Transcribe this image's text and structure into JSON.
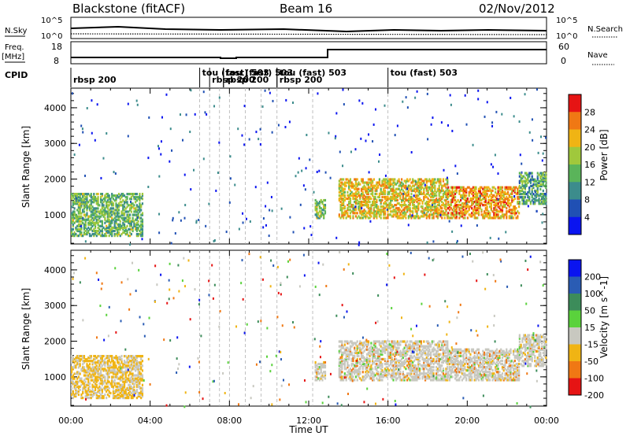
{
  "header": {
    "title": "Blackstone (fitACF)",
    "beam": "Beam 16",
    "date": "02/Nov/2012"
  },
  "sky_panel": {
    "left_label": "N.Sky",
    "right_label": "N.Search",
    "left_ticks": [
      "10^5",
      "10^0"
    ],
    "right_ticks": [
      "10^5",
      "10^0"
    ]
  },
  "freq_panel": {
    "left_label_1": "Freq.",
    "left_label_2": "[MHz]",
    "left_ticks": [
      "18",
      "8"
    ],
    "right_label": "Nave",
    "right_ticks": [
      "60",
      "0"
    ]
  },
  "cpid": {
    "label": "CPID",
    "segments": [
      {
        "label": "rbsp 200",
        "row": 1,
        "start_hour": 0.0
      },
      {
        "label": "tou (fast) 503",
        "row": 0,
        "start_hour": 6.5
      },
      {
        "label": "rbsp 200",
        "row": 1,
        "start_hour": 7.0
      },
      {
        "label": "rbsp 200",
        "row": 1,
        "start_hour": 7.7
      },
      {
        "label": "tou (fast) 503",
        "row": 0,
        "start_hour": 7.7
      },
      {
        "label": "rbsp 200",
        "row": 1,
        "start_hour": 10.4
      },
      {
        "label": "tou (fast) 503",
        "row": 0,
        "start_hour": 10.4
      },
      {
        "label": "tou (fast) 503",
        "row": 0,
        "start_hour": 16.0
      }
    ],
    "boundaries_hours": [
      6.5,
      7.0,
      7.5,
      8.0,
      8.8,
      9.6,
      10.4,
      12.2,
      16.0
    ]
  },
  "chart_data": [
    {
      "type": "heatmap",
      "name": "power",
      "ylabel": "Slant Range [km]",
      "ylim": [
        180,
        4550
      ],
      "xlim_hours": [
        0,
        24
      ],
      "yticks": [
        1000,
        2000,
        3000,
        4000
      ],
      "colorbar": {
        "label": "Power [dB]",
        "ticks": [
          "4",
          "8",
          "12",
          "16",
          "20",
          "24",
          "28"
        ],
        "colors": [
          "#0a14f0",
          "#2050b4",
          "#3c8c8c",
          "#5ab45a",
          "#a0c83c",
          "#f0b414",
          "#f07814",
          "#e61414"
        ]
      },
      "regions": [
        {
          "x": [
            0.0,
            3.6
          ],
          "y": [
            400,
            1600
          ],
          "level": 0.45
        },
        {
          "x": [
            12.3,
            12.8
          ],
          "y": [
            900,
            1400
          ],
          "level": 0.5
        },
        {
          "x": [
            13.5,
            19.0
          ],
          "y": [
            900,
            2000
          ],
          "level": 0.65
        },
        {
          "x": [
            19.0,
            22.6
          ],
          "y": [
            900,
            1800
          ],
          "level": 0.75
        },
        {
          "x": [
            22.6,
            24.0
          ],
          "y": [
            1300,
            2200
          ],
          "level": 0.4
        }
      ]
    },
    {
      "type": "heatmap",
      "name": "velocity",
      "ylabel": "Slant Range [km]",
      "xlabel": "Time UT",
      "ylim": [
        180,
        4550
      ],
      "xlim_hours": [
        0,
        24
      ],
      "yticks": [
        1000,
        2000,
        3000,
        4000
      ],
      "colorbar": {
        "label": "Velocity [m s^-1]",
        "ticks": [
          "200",
          "100",
          "50",
          "15",
          "-15",
          "-50",
          "-100",
          "-200"
        ],
        "colors": [
          "#0a14f0",
          "#2a5cb4",
          "#3c8c5a",
          "#5ad23c",
          "#c8c8c0",
          "#f0b414",
          "#f07814",
          "#e61414"
        ]
      },
      "xticks": [
        "00:00",
        "04:00",
        "08:00",
        "12:00",
        "16:00",
        "20:00",
        "00:00"
      ]
    }
  ]
}
